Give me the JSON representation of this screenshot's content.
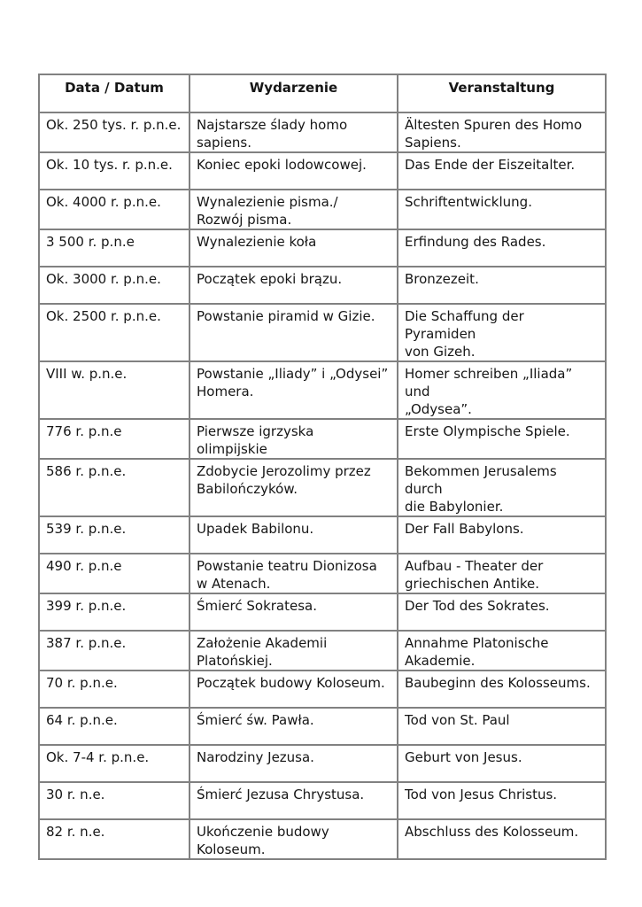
{
  "page": {
    "background_color": "#ffffff",
    "text_color": "#161616",
    "table_border_color": "#818181"
  },
  "table": {
    "headers": [
      "Data / Datum",
      "Wydarzenie",
      "Veranstaltung"
    ],
    "rows": [
      {
        "date": "Ok. 250 tys. r. p.n.e.",
        "event_pl": "Najstarsze ślady homo\nsapiens.",
        "event_de": "Ältesten Spuren des Homo\nSapiens."
      },
      {
        "date": "Ok. 10 tys. r. p.n.e.",
        "event_pl": "Koniec epoki lodowcowej.",
        "event_de": "Das Ende der Eiszeitalter."
      },
      {
        "date": "Ok. 4000 r. p.n.e.",
        "event_pl": "Wynalezienie pisma./\nRozwój pisma.",
        "event_de": "Schriftentwicklung."
      },
      {
        "date": "3 500 r. p.n.e",
        "event_pl": "Wynalezienie koła",
        "event_de": "Erfindung des Rades."
      },
      {
        "date": "Ok. 3000 r. p.n.e.",
        "event_pl": "Początek epoki brązu.",
        "event_de": "Bronzezeit."
      },
      {
        "date": "Ok. 2500 r. p.n.e.",
        "event_pl": "Powstanie piramid w Gizie.",
        "event_de": "Die Schaffung der Pyramiden\nvon Gizeh."
      },
      {
        "date": "VIII w. p.n.e.",
        "event_pl": "Powstanie „Iliady” i „Odysei”\nHomera.",
        "event_de": "Homer schreiben „Iliada” und\n„Odysea”."
      },
      {
        "date": "776 r. p.n.e",
        "event_pl": "Pierwsze igrzyska\nolimpijskie",
        "event_de": "Erste Olympische Spiele."
      },
      {
        "date": "586 r. p.n.e.",
        "event_pl": "Zdobycie Jerozolimy przez\nBabilończyków.",
        "event_de": "Bekommen Jerusalems durch\ndie Babylonier."
      },
      {
        "date": "539 r. p.n.e.",
        "event_pl": "Upadek Babilonu.",
        "event_de": "Der Fall Babylons."
      },
      {
        "date": "490 r. p.n.e",
        "event_pl": "Powstanie teatru Dionizosa\nw Atenach.",
        "event_de": "Aufbau - Theater der\ngriechischen Antike."
      },
      {
        "date": "399 r. p.n.e.",
        "event_pl": "Śmierć Sokratesa.",
        "event_de": "Der Tod des Sokrates."
      },
      {
        "date": "387 r. p.n.e.",
        "event_pl": "Założenie Akademii\nPlatońskiej.",
        "event_de": "Annahme Platonische\nAkademie."
      },
      {
        "date": "70 r. p.n.e.",
        "event_pl": "Początek budowy Koloseum.",
        "event_de": "Baubeginn des Kolosseums."
      },
      {
        "date": "64 r. p.n.e.",
        "event_pl": "Śmierć św. Pawła.",
        "event_de": "Tod von St. Paul"
      },
      {
        "date": "Ok. 7-4 r. p.n.e.",
        "event_pl": "Narodziny Jezusa.",
        "event_de": "Geburt von Jesus."
      },
      {
        "date": "30 r. n.e.",
        "event_pl": "Śmierć Jezusa Chrystusa.",
        "event_de": "Tod von Jesus Christus."
      },
      {
        "date": "82 r. n.e.",
        "event_pl": "Ukończenie budowy\nKoloseum.",
        "event_de": "Abschluss des Kolosseum."
      }
    ]
  }
}
